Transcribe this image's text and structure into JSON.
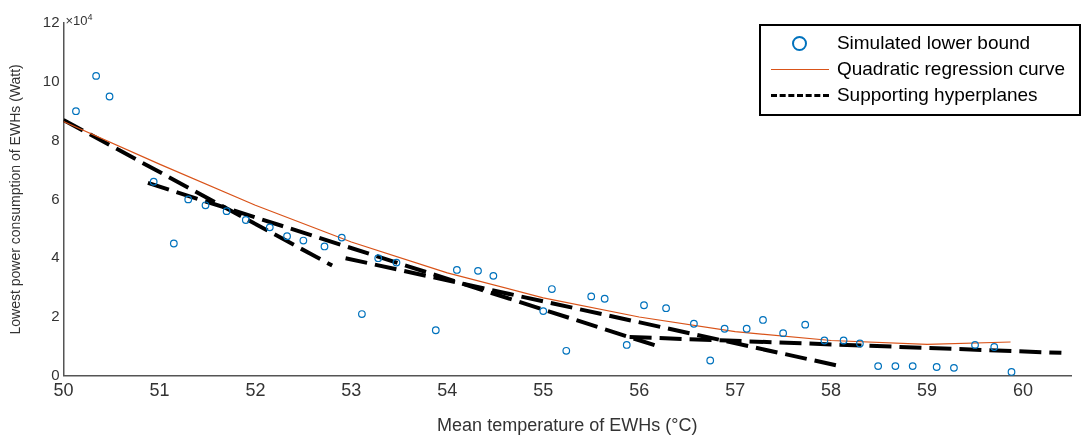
{
  "chart_data": {
    "type": "scatter",
    "xlabel": "Mean temperature of EWHs (°C)",
    "ylabel": "Lowest power consumption of EWHs (Watt)",
    "annotations": [
      "×10$^{4}$"
    ],
    "xlim": [
      50,
      60.5
    ],
    "xticks": [
      50,
      51,
      52,
      53,
      54,
      55,
      56,
      57,
      58,
      59,
      60
    ],
    "ylim": [
      0,
      12
    ],
    "yticks": [
      0,
      2,
      4,
      6,
      8,
      10,
      12
    ],
    "grid": false,
    "legend": "top right",
    "series": [
      {
        "name": "Simulated lower bound",
        "marker": "circle",
        "color": "#0072bd",
        "x": [
          50.13,
          50.34,
          50.48,
          50.94,
          51.15,
          51.3,
          51.48,
          51.7,
          51.9,
          52.15,
          52.33,
          52.5,
          52.72,
          52.9,
          53.11,
          53.28,
          53.47,
          53.88,
          54.1,
          54.32,
          54.48,
          55.0,
          55.09,
          55.24,
          55.5,
          55.64,
          55.87,
          56.05,
          56.28,
          56.57,
          56.74,
          56.89,
          57.12,
          57.29,
          57.5,
          57.73,
          57.93,
          58.13,
          58.3,
          58.49,
          58.67,
          58.85,
          59.1,
          59.28,
          59.5,
          59.7,
          59.88
        ],
        "values": [
          9.0,
          10.2,
          9.5,
          6.6,
          4.5,
          6.0,
          5.8,
          5.6,
          5.3,
          5.05,
          4.75,
          4.6,
          4.4,
          4.7,
          2.1,
          4.0,
          3.85,
          1.55,
          3.6,
          3.57,
          3.4,
          2.2,
          2.95,
          0.85,
          2.7,
          2.62,
          1.05,
          2.4,
          2.3,
          1.77,
          0.52,
          1.6,
          1.6,
          1.9,
          1.45,
          1.74,
          1.2,
          1.2,
          1.1,
          0.33,
          0.33,
          0.33,
          0.3,
          0.27,
          1.05,
          0.98,
          0.13
        ]
      },
      {
        "name": "Quadratic regression curve",
        "type": "line",
        "marker": "none",
        "line_style": "solid",
        "color": "#d95319",
        "x": [
          50,
          51,
          52,
          53,
          54,
          55,
          56,
          57,
          58,
          59,
          59.87
        ],
        "values": [
          8.65,
          7.2,
          5.8,
          4.55,
          3.5,
          2.65,
          2.0,
          1.5,
          1.2,
          1.07,
          1.15
        ]
      },
      {
        "name": "Supporting hyperplanes",
        "type": "line",
        "marker": "none",
        "line_style": "dashed",
        "color": "#000000",
        "x": [
          50.0,
          52.8
        ],
        "values": [
          8.7,
          3.75
        ]
      },
      {
        "type": "line",
        "marker": "none",
        "line_style": "dashed",
        "color": "#000000",
        "x": [
          50.88,
          56.18
        ],
        "values": [
          6.56,
          1.02
        ]
      },
      {
        "type": "line",
        "marker": "none",
        "line_style": "dashed",
        "color": "#000000",
        "x": [
          52.94,
          58.05
        ],
        "values": [
          4.0,
          0.36
        ]
      },
      {
        "type": "line",
        "marker": "none",
        "line_style": "dashed",
        "color": "#000000",
        "x": [
          55.9,
          60.4
        ],
        "values": [
          1.32,
          0.78
        ]
      }
    ]
  }
}
